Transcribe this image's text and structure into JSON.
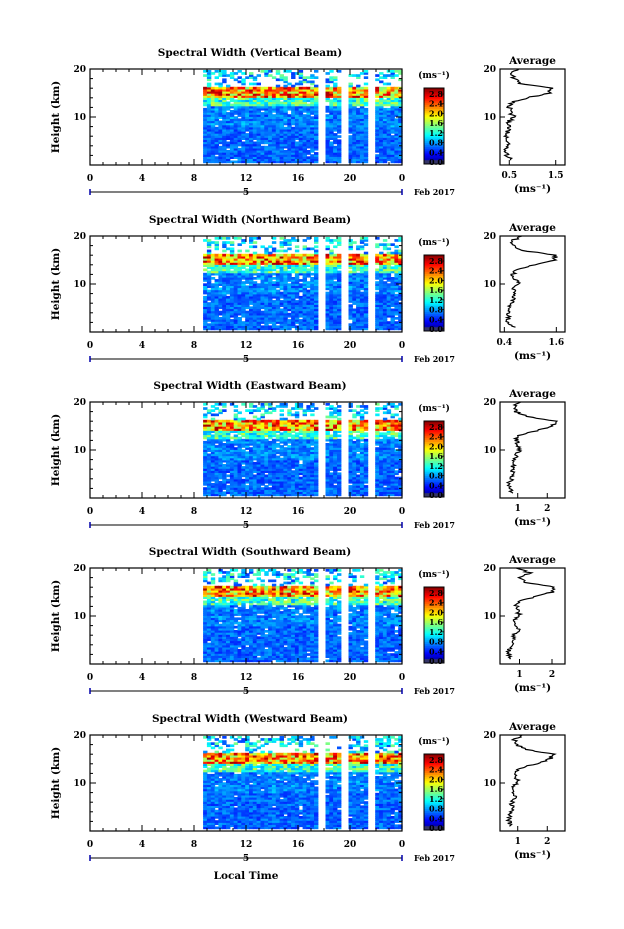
{
  "common": {
    "x_ticks": [
      "0",
      "4",
      "8",
      "12",
      "16",
      "20",
      "0"
    ],
    "y_ticks": [
      "20",
      "10"
    ],
    "ylabel": "Height (km)",
    "day_label": "5",
    "month_label": "Feb 2017",
    "colorbar_unit": "(ms⁻¹)",
    "colorbar_ticks": [
      "2.8",
      "2.4",
      "2.0",
      "1.6",
      "1.2",
      "0.8",
      "0.4",
      "0.0"
    ],
    "avg_title": "Average",
    "avg_unit": "(ms⁻¹)",
    "xlabel_bottom": "Local Time"
  },
  "chart_data": [
    {
      "type": "heatmap",
      "title": "Spectral Width (Vertical Beam)",
      "x_range": [
        0,
        24
      ],
      "y_range": [
        0,
        20
      ],
      "color_range": [
        0.0,
        2.8
      ],
      "data_gaps_hours": [
        [
          17.6,
          18.0
        ],
        [
          19.2,
          19.8
        ],
        [
          21.4,
          21.8
        ]
      ],
      "avg_profile": {
        "title": "Average",
        "x_ticks": [
          "0.5",
          "1.5"
        ],
        "x_range": [
          0.3,
          1.7
        ],
        "height_km": [
          1,
          2,
          3,
          4,
          5,
          6,
          7,
          8,
          9,
          10,
          11,
          12,
          13,
          14,
          15,
          16,
          17,
          18,
          19,
          20
        ],
        "width_ms": [
          0.55,
          0.45,
          0.42,
          0.45,
          0.48,
          0.43,
          0.46,
          0.5,
          0.48,
          0.6,
          0.52,
          0.5,
          0.55,
          0.9,
          1.35,
          1.45,
          0.75,
          0.6,
          0.55,
          0.7
        ]
      }
    },
    {
      "type": "heatmap",
      "title": "Spectral Width (Northward Beam)",
      "x_range": [
        0,
        24
      ],
      "y_range": [
        0,
        20
      ],
      "color_range": [
        0.0,
        2.8
      ],
      "data_gaps_hours": [
        [
          17.6,
          18.0
        ],
        [
          19.2,
          19.8
        ],
        [
          21.4,
          21.8
        ]
      ],
      "avg_profile": {
        "title": "Average",
        "x_ticks": [
          "0.4",
          "1.6"
        ],
        "x_range": [
          0.3,
          1.8
        ],
        "height_km": [
          1,
          2,
          3,
          4,
          5,
          6,
          7,
          8,
          9,
          10,
          11,
          12,
          13,
          14,
          15,
          16,
          17,
          18,
          19,
          20
        ],
        "width_ms": [
          0.6,
          0.5,
          0.48,
          0.5,
          0.52,
          0.55,
          0.6,
          0.62,
          0.6,
          0.72,
          0.66,
          0.6,
          0.65,
          1.1,
          1.55,
          1.6,
          0.8,
          0.62,
          0.58,
          0.8
        ]
      }
    },
    {
      "type": "heatmap",
      "title": "Spectral Width (Eastward Beam)",
      "x_range": [
        0,
        24
      ],
      "y_range": [
        0,
        20
      ],
      "color_range": [
        0.0,
        2.8
      ],
      "data_gaps_hours": [
        [
          17.6,
          18.0
        ],
        [
          19.2,
          19.8
        ],
        [
          21.4,
          21.8
        ]
      ],
      "avg_profile": {
        "title": "Average",
        "x_ticks": [
          "1",
          "2"
        ],
        "x_range": [
          0.4,
          2.6
        ],
        "height_km": [
          1,
          2,
          3,
          4,
          5,
          6,
          7,
          8,
          9,
          10,
          11,
          12,
          13,
          14,
          15,
          16,
          17,
          18,
          19,
          20
        ],
        "width_ms": [
          0.8,
          0.7,
          0.72,
          0.78,
          0.8,
          0.82,
          0.85,
          0.9,
          0.95,
          1.05,
          1.0,
          0.95,
          1.0,
          1.6,
          2.2,
          2.3,
          1.3,
          0.95,
          0.85,
          1.1
        ]
      }
    },
    {
      "type": "heatmap",
      "title": "Spectral Width (Southward Beam)",
      "x_range": [
        0,
        24
      ],
      "y_range": [
        0,
        20
      ],
      "color_range": [
        0.0,
        2.8
      ],
      "data_gaps_hours": [
        [
          17.6,
          18.0
        ],
        [
          19.2,
          19.8
        ],
        [
          21.4,
          21.8
        ]
      ],
      "avg_profile": {
        "title": "Average",
        "x_ticks": [
          "1",
          "2"
        ],
        "x_range": [
          0.4,
          2.4
        ],
        "height_km": [
          1,
          2,
          3,
          4,
          5,
          6,
          7,
          8,
          9,
          10,
          11,
          12,
          13,
          14,
          15,
          16,
          17,
          18,
          19,
          20
        ],
        "width_ms": [
          0.7,
          0.65,
          0.7,
          0.75,
          0.8,
          0.85,
          0.95,
          0.9,
          0.85,
          1.0,
          0.95,
          0.9,
          1.0,
          1.5,
          2.0,
          2.1,
          1.2,
          1.0,
          1.3,
          0.9
        ]
      }
    },
    {
      "type": "heatmap",
      "title": "Spectral Width (Westward Beam)",
      "x_range": [
        0,
        24
      ],
      "y_range": [
        0,
        20
      ],
      "color_range": [
        0.0,
        2.8
      ],
      "data_gaps_hours": [
        [
          17.6,
          18.0
        ],
        [
          19.2,
          19.8
        ],
        [
          21.4,
          21.8
        ]
      ],
      "avg_profile": {
        "title": "Average",
        "x_ticks": [
          "1",
          "2"
        ],
        "x_range": [
          0.4,
          2.6
        ],
        "height_km": [
          1,
          2,
          3,
          4,
          5,
          6,
          7,
          8,
          9,
          10,
          11,
          12,
          13,
          14,
          15,
          16,
          17,
          18,
          19,
          20
        ],
        "width_ms": [
          0.75,
          0.7,
          0.72,
          0.78,
          0.8,
          0.82,
          0.9,
          0.88,
          0.85,
          1.0,
          0.95,
          0.9,
          1.05,
          1.6,
          2.1,
          2.2,
          1.25,
          1.0,
          0.9,
          1.15
        ]
      }
    }
  ]
}
